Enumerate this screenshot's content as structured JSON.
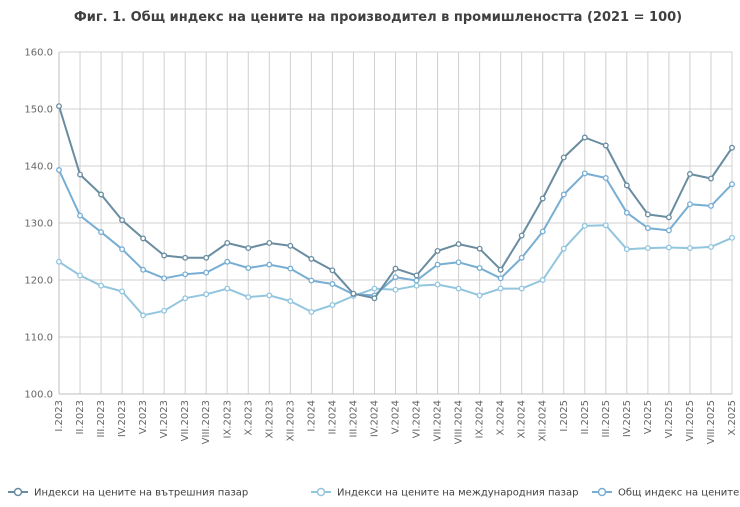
{
  "chart_data": {
    "type": "line",
    "title": "Фиг. 1. Общ индекс на цените на производител в промишлеността (2021 = 100)",
    "xlabel": "",
    "ylabel": "",
    "ylim": [
      100,
      160
    ],
    "yticks": [
      "100.0",
      "110.0",
      "120.0",
      "130.0",
      "140.0",
      "150.0",
      "160.0"
    ],
    "ytick_values": [
      100,
      110,
      120,
      130,
      140,
      150,
      160
    ],
    "grid": true,
    "legend_position": "bottom",
    "categories": [
      "I.2023",
      "II.2023",
      "III.2023",
      "IV.2023",
      "V.2023",
      "VI.2023",
      "VII.2023",
      "VIII.2023",
      "IX.2023",
      "X.2023",
      "XI.2023",
      "XII.2023",
      "I.2024",
      "II.2024",
      "III.2024",
      "IV.2024",
      "V.2024",
      "VI.2024",
      "VII.2024",
      "VIII.2024",
      "IX.2024",
      "X.2024",
      "XI.2024",
      "XII.2024",
      "I.2025",
      "II.2025",
      "III.2025",
      "IV.2025",
      "V.2025",
      "VI.2025",
      "VII.2025",
      "VIII.2025",
      "X.2025"
    ],
    "series": [
      {
        "name": "Индекси на цените на вътрешния пазар",
        "color": "#6a8ca0",
        "values": [
          150.5,
          138.5,
          135.0,
          130.5,
          127.3,
          124.3,
          123.9,
          123.9,
          126.5,
          125.6,
          126.5,
          126.0,
          123.7,
          121.7,
          117.6,
          116.8,
          122.0,
          120.8,
          125.1,
          126.3,
          125.5,
          121.8,
          127.8,
          134.3,
          141.5,
          145.0,
          143.6,
          136.6,
          131.5,
          131.0,
          138.6,
          137.8,
          143.2
        ]
      },
      {
        "name": "Индекси на цените на международния пазар",
        "color": "#92c5de",
        "values": [
          123.2,
          120.8,
          119.0,
          118.0,
          113.8,
          114.6,
          116.8,
          117.5,
          118.5,
          117.0,
          117.3,
          116.3,
          114.4,
          115.6,
          117.2,
          118.5,
          118.3,
          119.0,
          119.2,
          118.5,
          117.3,
          118.5,
          118.5,
          120.0,
          125.5,
          129.5,
          129.6,
          125.4,
          125.6,
          125.7,
          125.6,
          125.8,
          127.4
        ]
      },
      {
        "name": "Общ индекс на цените",
        "color": "#78aed3",
        "values": [
          139.3,
          131.3,
          128.4,
          125.4,
          121.8,
          120.3,
          121.0,
          121.3,
          123.2,
          122.1,
          122.7,
          122.0,
          119.9,
          119.3,
          117.5,
          117.3,
          120.5,
          119.9,
          122.7,
          123.1,
          122.1,
          120.3,
          123.9,
          128.5,
          135.0,
          138.7,
          137.9,
          131.8,
          129.1,
          128.7,
          133.3,
          133.0,
          136.8
        ]
      }
    ]
  }
}
